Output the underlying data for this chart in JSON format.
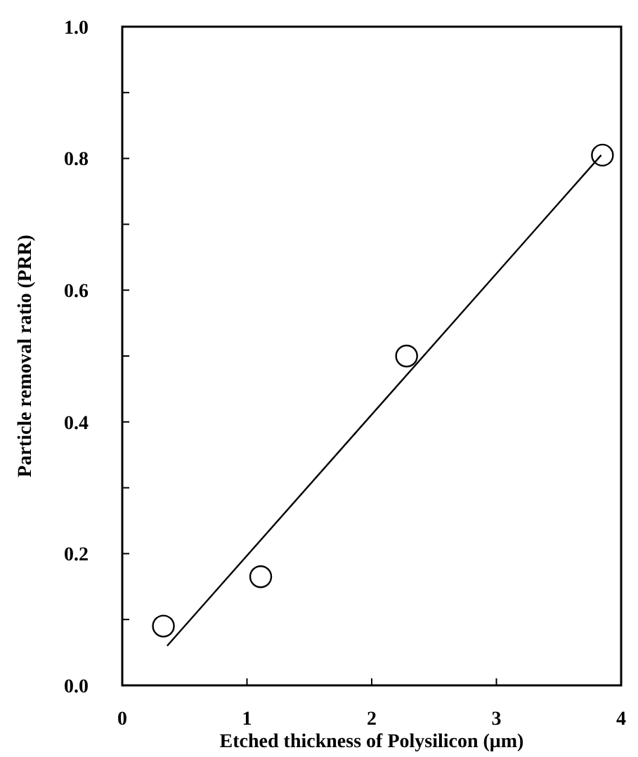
{
  "chart_data": {
    "type": "scatter",
    "xlabel": "Etched thickness of Polysilicon (μm)",
    "ylabel": "Particle removal ratio (PRR)",
    "series": [
      {
        "color": "#000000",
        "marker": "circle",
        "x": [
          0.33,
          1.11,
          2.28,
          3.85
        ],
        "values": [
          0.09,
          0.165,
          0.5,
          0.805
        ]
      },
      {
        "type": "line",
        "color": "#000000",
        "x": [
          0.36,
          3.84
        ],
        "values": [
          0.06,
          0.805
        ]
      }
    ],
    "xlim": [
      0,
      4
    ],
    "xticks": [
      0,
      1,
      2,
      3,
      4
    ],
    "ylim": [
      0,
      1
    ],
    "yticks": [
      {
        "value": 0,
        "label": "0.0"
      },
      {
        "value": 0.1,
        "label": null
      },
      0.2,
      {
        "value": 0.3,
        "label": null
      },
      0.4,
      {
        "value": 0.5,
        "label": null
      },
      0.6,
      {
        "value": 0.7,
        "label": null
      },
      0.8,
      {
        "value": 0.9,
        "label": null
      },
      {
        "value": 1,
        "label": "1.0"
      }
    ]
  }
}
